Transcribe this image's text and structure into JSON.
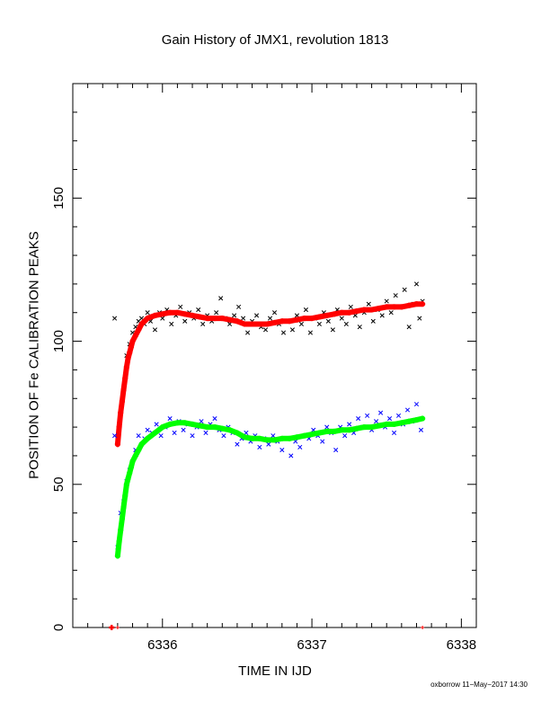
{
  "chart_data": {
    "type": "scatter",
    "title": "Gain History of JMX1, revolution 1813",
    "xlabel": "TIME IN IJD",
    "ylabel": "POSITION OF Fe CALIBRATION PEAKS",
    "xlim": [
      6335.4,
      6338.1
    ],
    "ylim": [
      0,
      190
    ],
    "x_ticks": [
      6336,
      6337,
      6338
    ],
    "y_ticks": [
      0,
      50,
      100,
      150
    ],
    "grid": false,
    "legend": "none",
    "series": [
      {
        "marker": "x",
        "color": "#000000",
        "x": [
          6335.68,
          6335.76,
          6335.78,
          6335.8,
          6335.82,
          6335.84,
          6335.86,
          6335.88,
          6335.9,
          6335.92,
          6335.95,
          6335.98,
          6336.0,
          6336.03,
          6336.06,
          6336.09,
          6336.12,
          6336.15,
          6336.18,
          6336.21,
          6336.24,
          6336.27,
          6336.3,
          6336.33,
          6336.36,
          6336.39,
          6336.42,
          6336.45,
          6336.48,
          6336.51,
          6336.54,
          6336.57,
          6336.6,
          6336.63,
          6336.66,
          6336.69,
          6336.72,
          6336.75,
          6336.78,
          6336.81,
          6336.84,
          6336.87,
          6336.9,
          6336.93,
          6336.96,
          6336.99,
          6337.02,
          6337.05,
          6337.08,
          6337.11,
          6337.14,
          6337.17,
          6337.2,
          6337.23,
          6337.26,
          6337.29,
          6337.32,
          6337.35,
          6337.38,
          6337.41,
          6337.44,
          6337.47,
          6337.5,
          6337.53,
          6337.56,
          6337.59,
          6337.62,
          6337.65,
          6337.68,
          6337.7,
          6337.72,
          6337.74
        ],
        "y": [
          108,
          95,
          99,
          103,
          105,
          107,
          108,
          106,
          110,
          107,
          104,
          110,
          108,
          111,
          106,
          109,
          112,
          107,
          110,
          108,
          111,
          106,
          109,
          107,
          110,
          115,
          108,
          106,
          109,
          112,
          108,
          103,
          107,
          109,
          105,
          104,
          108,
          110,
          106,
          103,
          107,
          104,
          109,
          106,
          111,
          103,
          108,
          106,
          110,
          107,
          104,
          111,
          108,
          106,
          112,
          109,
          105,
          110,
          113,
          107,
          111,
          109,
          114,
          110,
          116,
          112,
          118,
          105,
          113,
          120,
          108,
          114
        ]
      },
      {
        "marker": "+",
        "color": "#ff0000",
        "x": [
          6335.66,
          6335.7,
          6335.71,
          6335.72,
          6335.73,
          6335.74,
          6335.75,
          6335.76,
          6335.77,
          6335.78,
          6335.79,
          6335.8,
          6335.82,
          6335.84,
          6335.86,
          6335.88,
          6335.9,
          6335.95,
          6336.0,
          6336.05,
          6336.1,
          6336.15,
          6336.2,
          6336.25,
          6336.3,
          6336.35,
          6336.4,
          6336.45,
          6336.5,
          6336.55,
          6336.6,
          6336.65,
          6336.7,
          6336.75,
          6336.8,
          6336.85,
          6336.9,
          6336.95,
          6337.0,
          6337.05,
          6337.1,
          6337.15,
          6337.2,
          6337.25,
          6337.3,
          6337.35,
          6337.4,
          6337.45,
          6337.5,
          6337.55,
          6337.6,
          6337.65,
          6337.7,
          6337.74
        ],
        "y": [
          0,
          64,
          70,
          75,
          79,
          83,
          87,
          91,
          94,
          96,
          98,
          100,
          102,
          104,
          106,
          107,
          108,
          109,
          109.5,
          110,
          110,
          109.5,
          109,
          108.5,
          108,
          108,
          108,
          107.5,
          107,
          106,
          106,
          106,
          106,
          106.5,
          107,
          107,
          107.5,
          108,
          108,
          108.5,
          109,
          109.5,
          110,
          110,
          110.5,
          111,
          111,
          111.5,
          112,
          112,
          112,
          112.5,
          113,
          113
        ]
      },
      {
        "marker": "x",
        "color": "#0000ff",
        "x": [
          6335.68,
          6335.7,
          6335.72,
          6335.74,
          6335.76,
          6335.78,
          6335.8,
          6335.82,
          6335.84,
          6335.86,
          6335.88,
          6335.9,
          6335.93,
          6335.96,
          6335.99,
          6336.02,
          6336.05,
          6336.08,
          6336.11,
          6336.14,
          6336.17,
          6336.2,
          6336.23,
          6336.26,
          6336.29,
          6336.32,
          6336.35,
          6336.38,
          6336.41,
          6336.44,
          6336.47,
          6336.5,
          6336.53,
          6336.56,
          6336.59,
          6336.62,
          6336.65,
          6336.68,
          6336.71,
          6336.74,
          6336.77,
          6336.8,
          6336.83,
          6336.86,
          6336.89,
          6336.92,
          6336.95,
          6336.98,
          6337.01,
          6337.04,
          6337.07,
          6337.1,
          6337.13,
          6337.16,
          6337.19,
          6337.22,
          6337.25,
          6337.28,
          6337.31,
          6337.34,
          6337.37,
          6337.4,
          6337.43,
          6337.46,
          6337.49,
          6337.52,
          6337.55,
          6337.58,
          6337.61,
          6337.64,
          6337.67,
          6337.7,
          6337.73
        ],
        "y": [
          67,
          28,
          40,
          44,
          51,
          55,
          58,
          62,
          67,
          64,
          66,
          69,
          68,
          71,
          67,
          70,
          73,
          68,
          72,
          69,
          71,
          67,
          70,
          72,
          68,
          71,
          73,
          69,
          67,
          70,
          68,
          64,
          66,
          68,
          65,
          67,
          63,
          66,
          64,
          67,
          65,
          62,
          66,
          60,
          65,
          63,
          67,
          66,
          69,
          67,
          65,
          70,
          68,
          62,
          70,
          67,
          71,
          68,
          73,
          70,
          74,
          69,
          72,
          75,
          70,
          73,
          68,
          74,
          71,
          76,
          72,
          78,
          69
        ]
      },
      {
        "marker": "+",
        "color": "#00ff00",
        "x": [
          6335.7,
          6335.71,
          6335.72,
          6335.73,
          6335.74,
          6335.75,
          6335.76,
          6335.77,
          6335.78,
          6335.79,
          6335.8,
          6335.82,
          6335.84,
          6335.86,
          6335.88,
          6335.9,
          6335.95,
          6336.0,
          6336.05,
          6336.1,
          6336.15,
          6336.2,
          6336.25,
          6336.3,
          6336.35,
          6336.4,
          6336.45,
          6336.5,
          6336.55,
          6336.6,
          6336.65,
          6336.7,
          6336.75,
          6336.8,
          6336.85,
          6336.9,
          6336.95,
          6337.0,
          6337.05,
          6337.1,
          6337.15,
          6337.2,
          6337.25,
          6337.3,
          6337.35,
          6337.4,
          6337.45,
          6337.5,
          6337.55,
          6337.6,
          6337.65,
          6337.7,
          6337.74
        ],
        "y": [
          25,
          30,
          34,
          38,
          42,
          46,
          50,
          52,
          54,
          56,
          58,
          60,
          62,
          64,
          65,
          66,
          68,
          70,
          71,
          71.5,
          71.5,
          71,
          70.5,
          70,
          70,
          69.5,
          69,
          68,
          66.5,
          66,
          66,
          65.5,
          65.5,
          66,
          66,
          66.5,
          67,
          67.5,
          68,
          68.5,
          68.5,
          69,
          69,
          69.5,
          70,
          70,
          70.5,
          71,
          71,
          71.5,
          72,
          72.5,
          73
        ]
      }
    ]
  },
  "footer": "oxborrow 11−May−2017 14:30"
}
